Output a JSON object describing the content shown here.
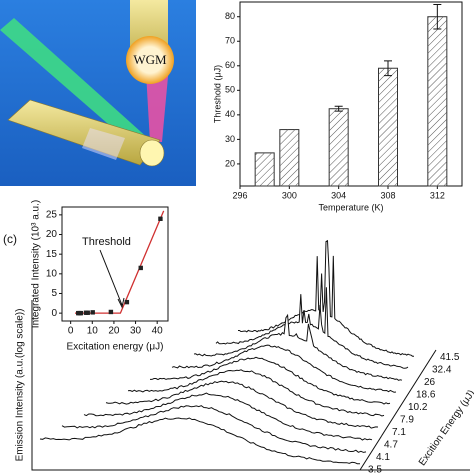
{
  "illustration": {
    "label": "WGM"
  },
  "chart_data": [
    {
      "type": "bar",
      "x_label": "Temperature (K)",
      "y_label": "Threshold (μJ)",
      "x": [
        298,
        300,
        304,
        308,
        312
      ],
      "values": [
        24.5,
        34,
        42.5,
        59,
        80
      ],
      "errors": [
        null,
        null,
        1,
        3,
        5
      ],
      "color": "#ffffff",
      "xlim": [
        296,
        314
      ],
      "xticks": [
        296,
        300,
        304,
        308,
        312
      ],
      "ylim": [
        11,
        86
      ],
      "yticks": [
        20,
        30,
        40,
        50,
        60,
        70,
        80
      ]
    },
    {
      "type": "scatter",
      "x_label": "Excitation energy (μJ)",
      "y_label": "Integrated Intensity (10³ a.u.)",
      "annotation": "Threshold",
      "x": [
        3.5,
        4.1,
        4.7,
        7.1,
        7.9,
        10.2,
        18.6,
        26,
        32.4,
        41.5
      ],
      "values": [
        0,
        0,
        0,
        0.1,
        0.1,
        0.2,
        0.3,
        2.8,
        11.5,
        24
      ],
      "color": "#222222",
      "fit": {
        "color": "#d03030",
        "x": [
          2,
          23,
          43
        ],
        "values": [
          0,
          0,
          26
        ]
      },
      "xlim": [
        -4,
        45
      ],
      "xticks": [
        0,
        10,
        20,
        30,
        40
      ],
      "ylim": [
        -2,
        27
      ],
      "yticks": [
        0,
        5,
        10,
        15,
        20,
        25
      ]
    }
  ],
  "panel_c": {
    "label": "(c)",
    "y_label": "Emission Intensity (a.u.(log scale))",
    "z_label": "Excition Energy (μJ)",
    "z_ticks": [
      "3.5",
      "4.1",
      "4.7",
      "7.1",
      "7.9",
      "10.2",
      "18.6",
      "26",
      "32.4",
      "41.5"
    ]
  }
}
